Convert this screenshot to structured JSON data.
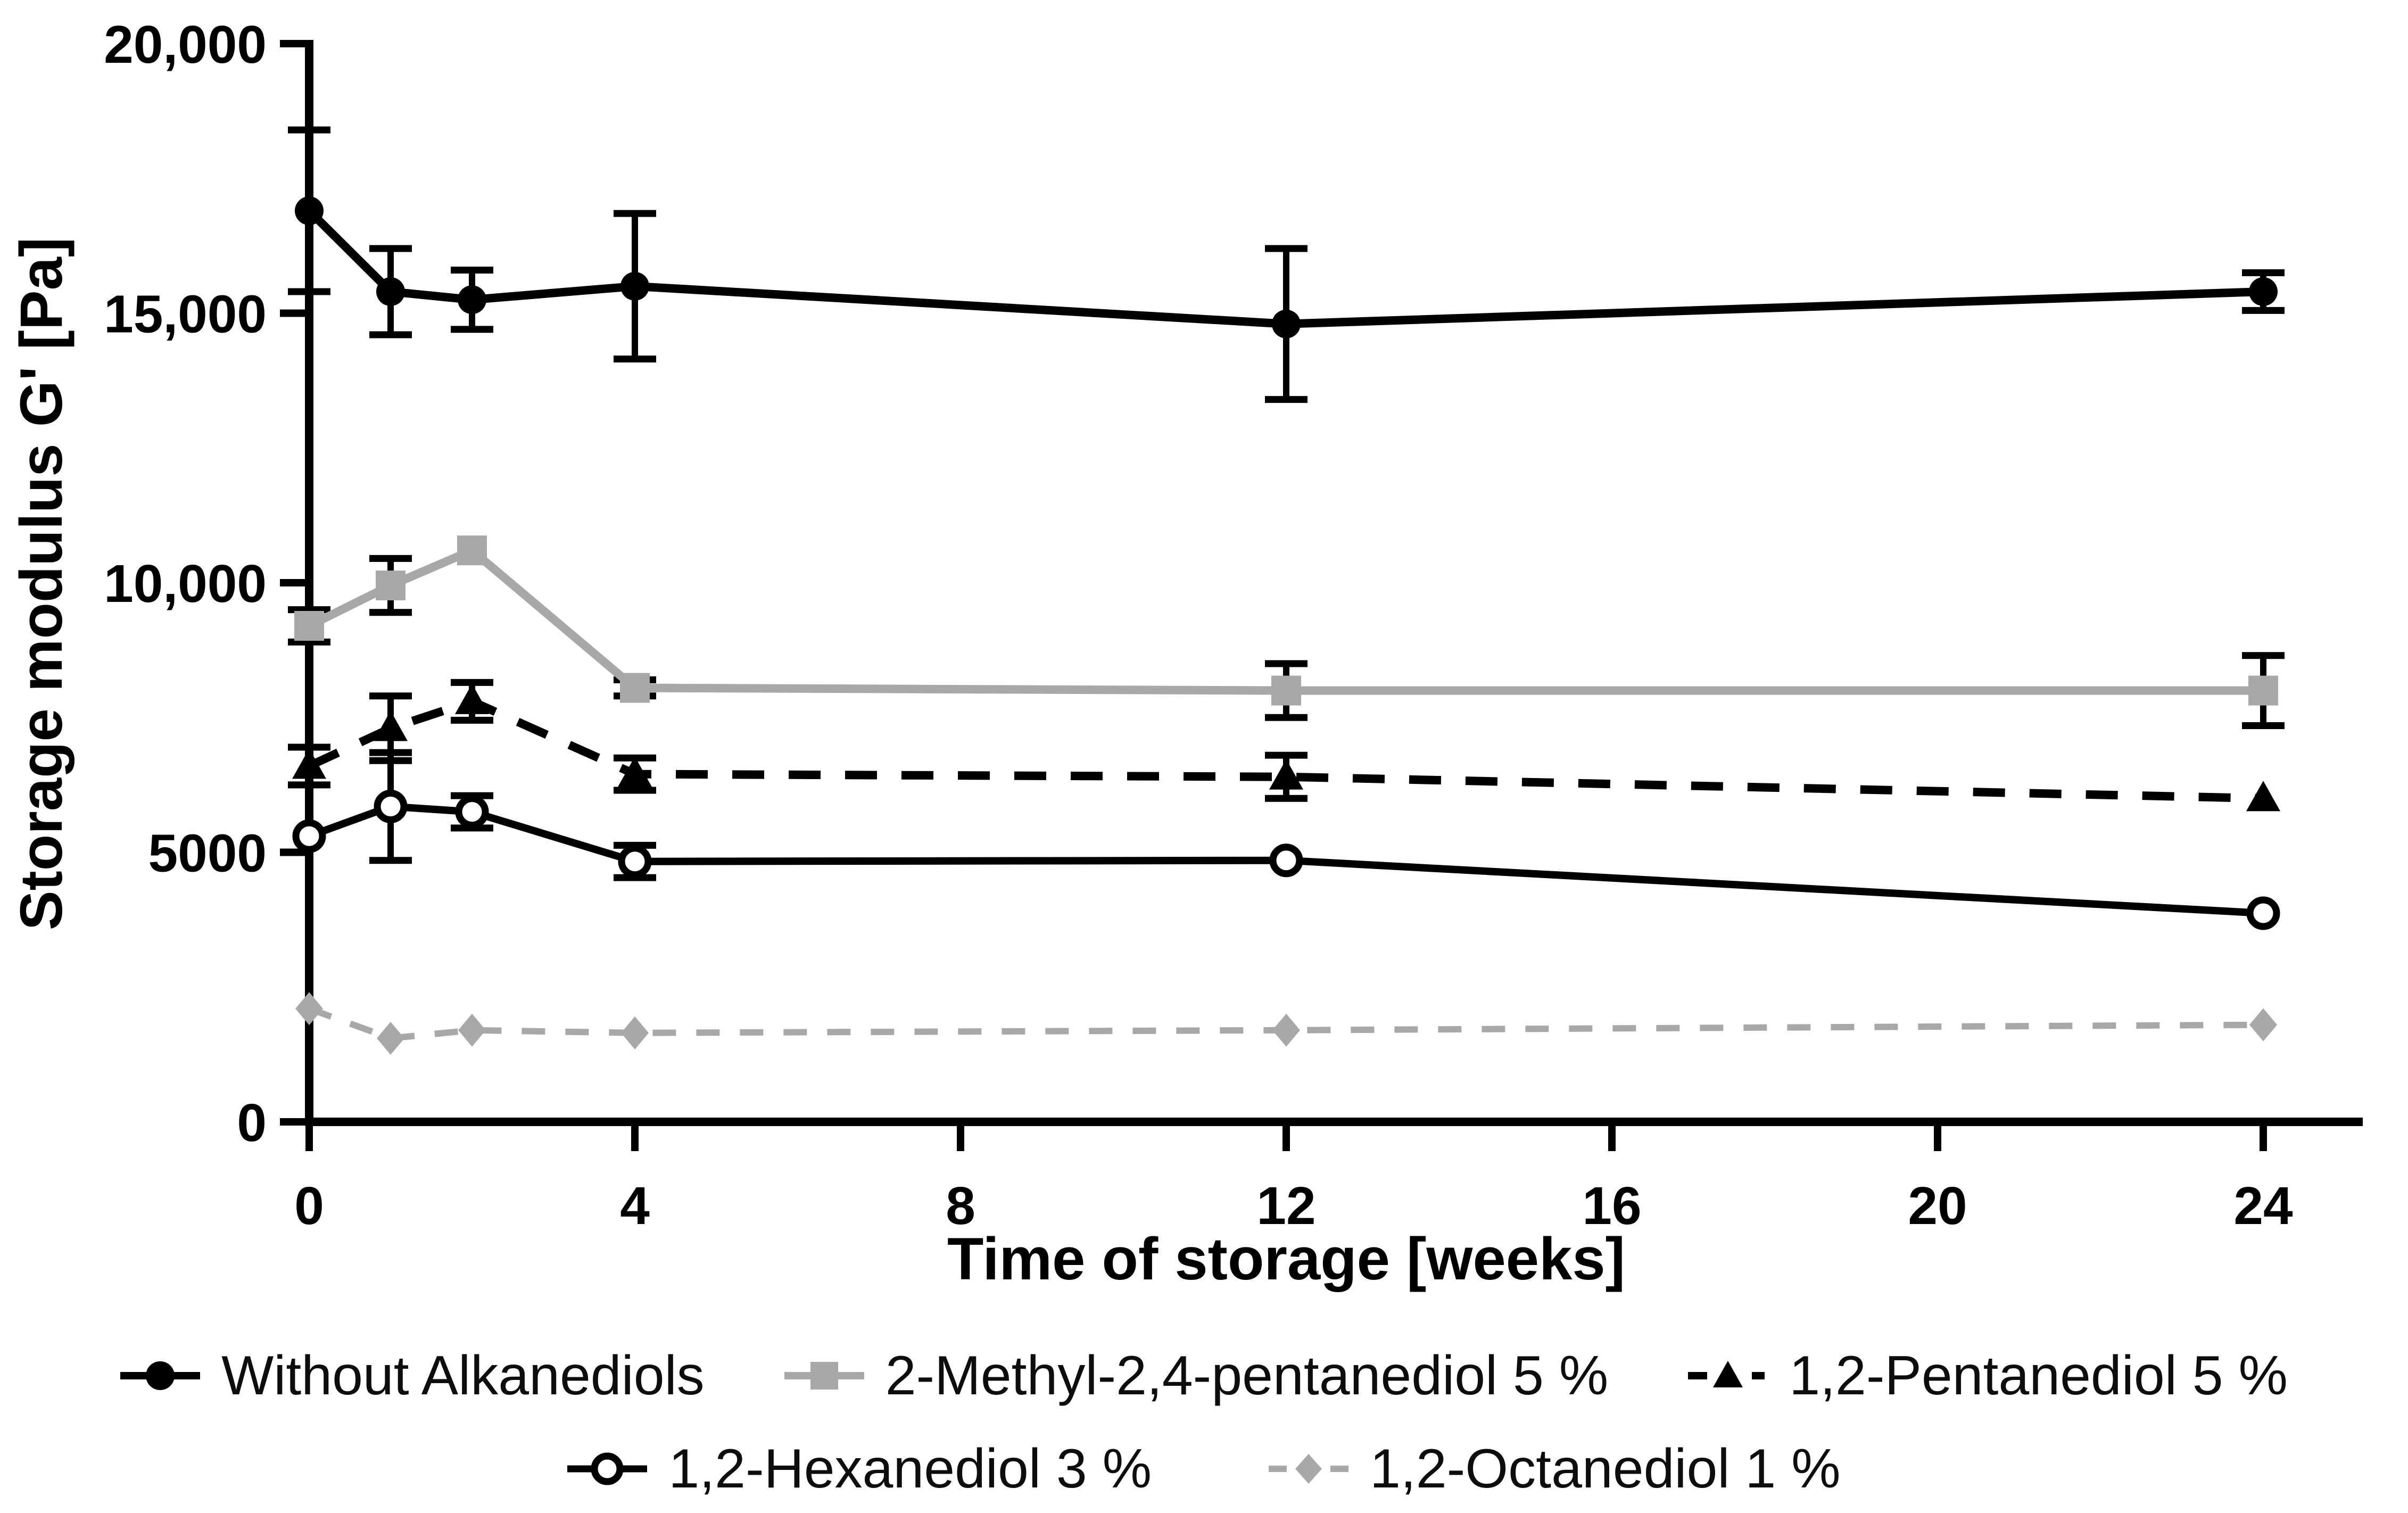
{
  "figure": {
    "background": "#ffffff",
    "black": "#000000",
    "gray": "#a8a8a8",
    "error_bar_color": "#000000"
  },
  "chart_data": {
    "type": "line",
    "title": "",
    "xlabel": "Time of storage [weeks]",
    "ylabel": "Storage modulus G' [Pa]",
    "x_tick_labels": [
      "0",
      "4",
      "8",
      "12",
      "16",
      "20",
      "24"
    ],
    "x_ticks": [
      0,
      4,
      8,
      12,
      16,
      20,
      24
    ],
    "y_tick_labels": [
      "0",
      "5000",
      "10,000",
      "15,000",
      "20,000"
    ],
    "y_ticks": [
      0,
      5000,
      10000,
      15000,
      20000
    ],
    "xlim": [
      0,
      25.2
    ],
    "ylim": [
      0,
      20000
    ],
    "grid": false,
    "legend_position": "bottom",
    "x": [
      0,
      1,
      2,
      4,
      12,
      24
    ],
    "series": [
      {
        "name": "Without Alkanediols",
        "marker": "filled-circle",
        "line": "solid",
        "color": "#000000",
        "values": [
          16900,
          15400,
          15250,
          15500,
          14800,
          15400
        ],
        "errors": [
          1500,
          800,
          550,
          1350,
          1400,
          350
        ]
      },
      {
        "name": "2-Methyl-2,4-pentanediol 5 %",
        "marker": "filled-square",
        "line": "solid",
        "color": "#a8a8a8",
        "values": [
          9200,
          9950,
          10600,
          8050,
          8000,
          8000
        ],
        "errors": [
          300,
          500,
          0,
          150,
          500,
          650
        ]
      },
      {
        "name": "1,2-Pentanediol 5 %",
        "marker": "filled-triangle",
        "line": "dashed",
        "color": "#000000",
        "values": [
          6600,
          7300,
          7800,
          6450,
          6400,
          6000
        ],
        "errors": [
          350,
          600,
          350,
          300,
          400,
          0
        ]
      },
      {
        "name": "1,2-Hexanediol 3 %",
        "marker": "open-circle",
        "line": "solid",
        "color": "#000000",
        "values": [
          5300,
          5850,
          5750,
          4830,
          4850,
          3870
        ],
        "errors": [
          0,
          1000,
          300,
          300,
          0,
          0
        ]
      },
      {
        "name": "1,2-Octanediol 1 %",
        "marker": "filled-diamond",
        "line": "dashed",
        "color": "#a8a8a8",
        "values": [
          2100,
          1550,
          1700,
          1650,
          1700,
          1800
        ],
        "errors": [
          0,
          0,
          0,
          0,
          0,
          0
        ]
      }
    ],
    "legend_rows": [
      [
        0,
        1,
        2
      ],
      [
        3,
        4
      ]
    ]
  }
}
